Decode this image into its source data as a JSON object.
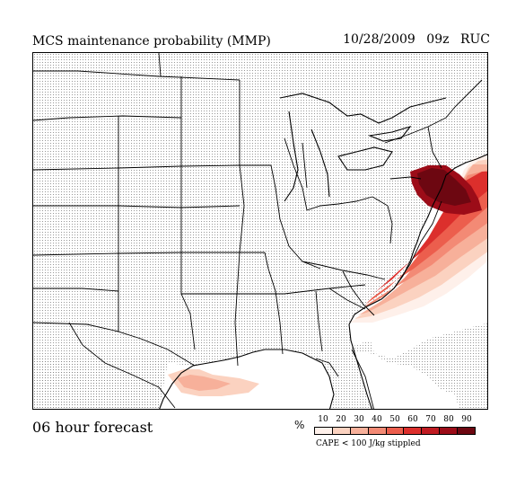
{
  "header": {
    "title": "MCS maintenance probability (MMP)",
    "date": "10/28/2009",
    "hour": "09z",
    "model": "RUC"
  },
  "footer": {
    "forecast_label": "06 hour forecast"
  },
  "legend": {
    "unit": "%",
    "ticks": [
      "10",
      "20",
      "30",
      "40",
      "50",
      "60",
      "70",
      "80",
      "90"
    ],
    "colors": [
      "#fef0ea",
      "#fbd2c0",
      "#f7b09a",
      "#f38a75",
      "#ec5e4d",
      "#dc2f2c",
      "#c01b22",
      "#9c0c18",
      "#6d0711"
    ],
    "note": "CAPE < 100 J/kg stippled"
  },
  "map": {
    "stipple_color": "#8c8c8c",
    "boundary_color": "#000000"
  }
}
